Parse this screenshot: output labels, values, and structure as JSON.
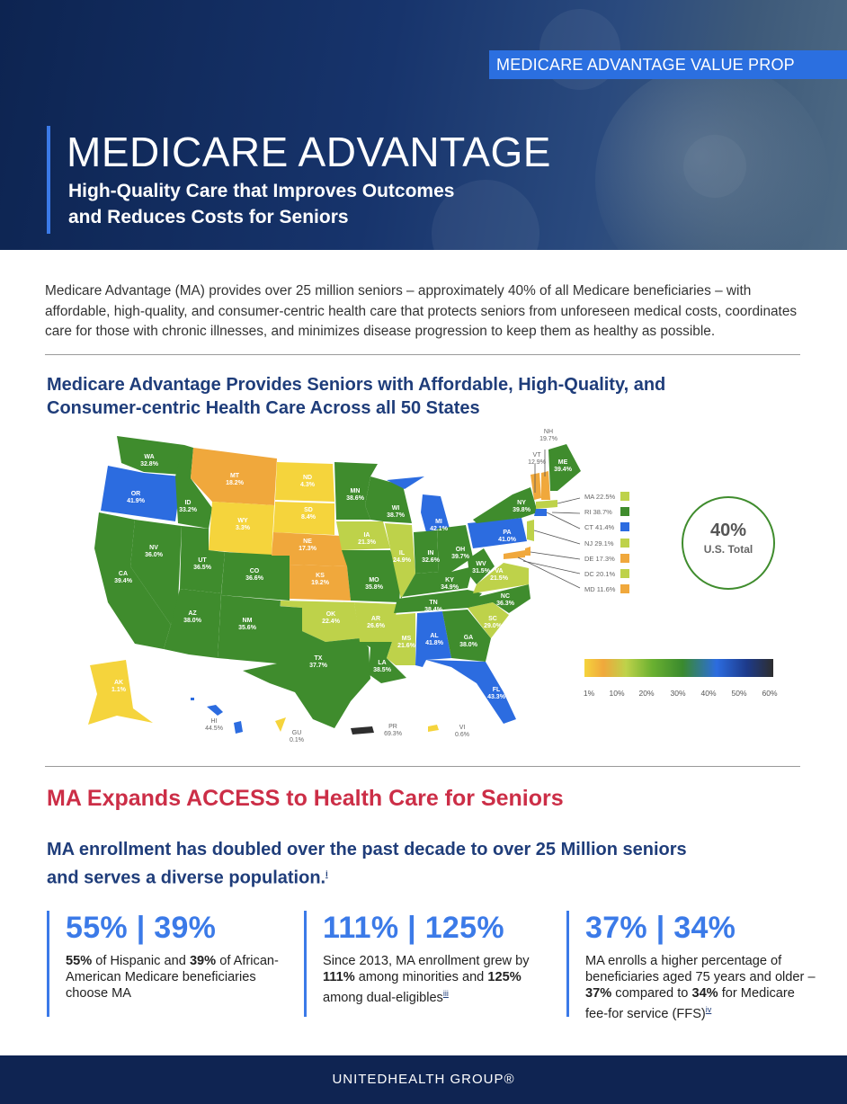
{
  "header": {
    "badge": "MEDICARE ADVANTAGE VALUE PROP",
    "title": "MEDICARE ADVANTAGE",
    "subtitle_line1": "High-Quality Care that Improves Outcomes",
    "subtitle_line2": "and Reduces Costs for Seniors"
  },
  "intro": "Medicare Advantage (MA) provides over 25 million seniors – approximately 40% of all Medicare beneficiaries – with affordable, high-quality, and consumer-centric health care that protects seniors from unforeseen medical costs, coordinates care for those with chronic illnesses, and minimizes disease progression to keep them as healthy as possible.",
  "map_section": {
    "heading_line1": "Medicare Advantage Provides Seniors with Affordable, High-Quality, and",
    "heading_line2": "Consumer-centric Health Care Across all 50 States",
    "total_value": "40%",
    "total_label": "U.S. Total",
    "legend_ticks": [
      "1%",
      "10%",
      "20%",
      "30%",
      "40%",
      "50%",
      "60%"
    ],
    "colors": {
      "yellow": "#f5d43c",
      "orange": "#f0a83c",
      "light_green": "#bed24a",
      "green": "#3f8c2d",
      "blue": "#2c6ce0"
    },
    "states": [
      {
        "abbr": "WA",
        "value": "32.8%"
      },
      {
        "abbr": "OR",
        "value": "41.9%"
      },
      {
        "abbr": "CA",
        "value": "39.4%"
      },
      {
        "abbr": "NV",
        "value": "36.0%"
      },
      {
        "abbr": "ID",
        "value": "33.2%"
      },
      {
        "abbr": "MT",
        "value": "18.2%"
      },
      {
        "abbr": "WY",
        "value": "3.3%"
      },
      {
        "abbr": "UT",
        "value": "36.5%"
      },
      {
        "abbr": "AZ",
        "value": "38.0%"
      },
      {
        "abbr": "CO",
        "value": "36.6%"
      },
      {
        "abbr": "NM",
        "value": "35.6%"
      },
      {
        "abbr": "ND",
        "value": "4.3%"
      },
      {
        "abbr": "SD",
        "value": "8.4%"
      },
      {
        "abbr": "NE",
        "value": "17.3%"
      },
      {
        "abbr": "KS",
        "value": "19.2%"
      },
      {
        "abbr": "OK",
        "value": "22.4%"
      },
      {
        "abbr": "TX",
        "value": "37.7%"
      },
      {
        "abbr": "MN",
        "value": "38.6%"
      },
      {
        "abbr": "IA",
        "value": "21.3%"
      },
      {
        "abbr": "MO",
        "value": "35.8%"
      },
      {
        "abbr": "AR",
        "value": "26.6%"
      },
      {
        "abbr": "LA",
        "value": "38.5%"
      },
      {
        "abbr": "WI",
        "value": "38.7%"
      },
      {
        "abbr": "IL",
        "value": "24.9%"
      },
      {
        "abbr": "MI",
        "value": "42.1%"
      },
      {
        "abbr": "IN",
        "value": "32.6%"
      },
      {
        "abbr": "OH",
        "value": "39.7%"
      },
      {
        "abbr": "KY",
        "value": "34.9%"
      },
      {
        "abbr": "TN",
        "value": "38.4%"
      },
      {
        "abbr": "MS",
        "value": "21.6%"
      },
      {
        "abbr": "AL",
        "value": "41.8%"
      },
      {
        "abbr": "GA",
        "value": "38.0%"
      },
      {
        "abbr": "FL",
        "value": "43.3%"
      },
      {
        "abbr": "SC",
        "value": "29.0%"
      },
      {
        "abbr": "NC",
        "value": "36.3%"
      },
      {
        "abbr": "VA",
        "value": "21.5%"
      },
      {
        "abbr": "WV",
        "value": "31.5%"
      },
      {
        "abbr": "PA",
        "value": "41.0%"
      },
      {
        "abbr": "NY",
        "value": "39.8%"
      },
      {
        "abbr": "VT",
        "value": "12.9%"
      },
      {
        "abbr": "NH",
        "value": "19.7%"
      },
      {
        "abbr": "ME",
        "value": "39.4%"
      },
      {
        "abbr": "AK",
        "value": "1.1%"
      },
      {
        "abbr": "HI",
        "value": "44.5%"
      },
      {
        "abbr": "GU",
        "value": "0.1%"
      },
      {
        "abbr": "PR",
        "value": "69.3%"
      },
      {
        "abbr": "VI",
        "value": "0.6%"
      }
    ],
    "small_states": [
      {
        "label": "MA 22.5%",
        "color": "#bed24a"
      },
      {
        "label": "RI 38.7%",
        "color": "#3f8c2d"
      },
      {
        "label": "CT 41.4%",
        "color": "#2c6ce0"
      },
      {
        "label": "NJ 29.1%",
        "color": "#bed24a"
      },
      {
        "label": "DE 17.3%",
        "color": "#f0a83c"
      },
      {
        "label": "DC 20.1%",
        "color": "#bed24a"
      },
      {
        "label": "MD 11.6%",
        "color": "#f0a83c"
      }
    ]
  },
  "access": {
    "heading": "MA Expands ACCESS to Health Care for Seniors",
    "enroll_line1": "MA enrollment has doubled over the past decade to over 25 Million seniors",
    "enroll_line2": "and serves a diverse population.",
    "enroll_fn": "i",
    "stats": [
      {
        "number": "55% | 39%",
        "pre": "",
        "b1": "55%",
        "mid": " of Hispanic and ",
        "b2": "39%",
        "post": " of African-American Medicare beneficiaries choose MA",
        "fn": ""
      },
      {
        "number": "111% | 125%",
        "pre": "Since 2013, MA enrollment grew by ",
        "b1": "111%",
        "mid": " among minorities and ",
        "b2": "125%",
        "post": " among dual-eligibles",
        "fn": "iii"
      },
      {
        "number": "37% | 34%",
        "pre": "MA enrolls a higher percentage of beneficiaries aged 75 years and older – ",
        "b1": "37%",
        "mid": " compared to ",
        "b2": "34%",
        "post": " for Medicare fee-for service (FFS)",
        "fn": "iv"
      }
    ]
  },
  "footer": {
    "logo_text": "UNITEDHEALTH GROUP®"
  }
}
